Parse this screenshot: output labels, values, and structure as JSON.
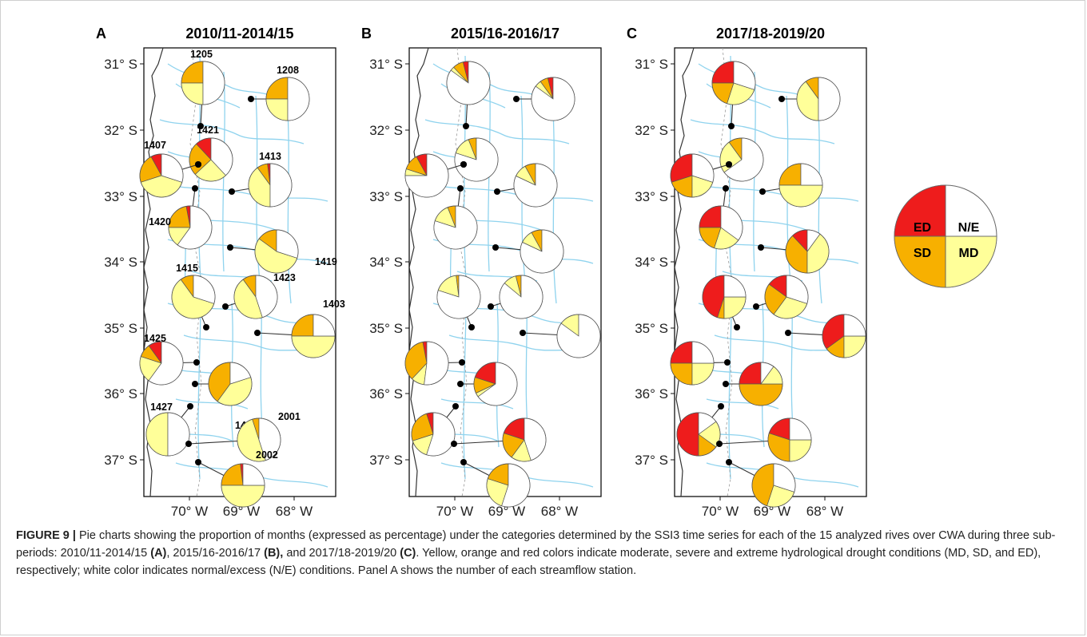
{
  "panels": [
    {
      "letter": "A",
      "title": "2010/11-2014/15"
    },
    {
      "letter": "B",
      "title": "2015/16-2016/17"
    },
    {
      "letter": "C",
      "title": "2017/18-2019/20"
    }
  ],
  "axes": {
    "y_ticks": [
      "31° S",
      "32° S",
      "33° S",
      "34° S",
      "35° S",
      "36° S",
      "37° S"
    ],
    "x_ticks": [
      "70° W",
      "69° W",
      "68° W"
    ]
  },
  "legend": {
    "ED": "ED",
    "NE": "N/E",
    "SD": "SD",
    "MD": "MD"
  },
  "colors": {
    "ED": "#ee1c1c",
    "SD": "#f7b000",
    "MD": "#ffff99",
    "NE": "#ffffff",
    "rivers": "#8fd3ee",
    "coast": "#333333"
  },
  "stations": [
    "1205",
    "1208",
    "1421",
    "1407",
    "1413",
    "1420",
    "1419",
    "1415",
    "1423",
    "1403",
    "1425",
    "1426",
    "1427",
    "2001",
    "2002"
  ],
  "chart_data": [
    {
      "type": "pie",
      "panel": "A",
      "title": "2010/11-2014/15",
      "categories": [
        "ED",
        "SD",
        "MD",
        "N/E"
      ],
      "stations": [
        {
          "id": "1205",
          "values": [
            0,
            25,
            25,
            50
          ]
        },
        {
          "id": "1208",
          "values": [
            0,
            25,
            25,
            50
          ]
        },
        {
          "id": "1421",
          "values": [
            12,
            25,
            25,
            38
          ]
        },
        {
          "id": "1407",
          "values": [
            8,
            22,
            40,
            30
          ]
        },
        {
          "id": "1413",
          "values": [
            2,
            8,
            40,
            50
          ]
        },
        {
          "id": "1420",
          "values": [
            3,
            22,
            15,
            60
          ]
        },
        {
          "id": "1419",
          "values": [
            0,
            15,
            55,
            30
          ]
        },
        {
          "id": "1415",
          "values": [
            0,
            10,
            60,
            30
          ]
        },
        {
          "id": "1423",
          "values": [
            0,
            10,
            45,
            45
          ]
        },
        {
          "id": "1403",
          "values": [
            0,
            25,
            50,
            25
          ]
        },
        {
          "id": "1425",
          "values": [
            10,
            10,
            20,
            60
          ]
        },
        {
          "id": "1426",
          "values": [
            0,
            40,
            40,
            20
          ]
        },
        {
          "id": "1427",
          "values": [
            0,
            0,
            50,
            50
          ]
        },
        {
          "id": "2001",
          "values": [
            0,
            5,
            50,
            45
          ]
        },
        {
          "id": "2002",
          "values": [
            2,
            23,
            50,
            25
          ]
        }
      ]
    },
    {
      "type": "pie",
      "panel": "B",
      "title": "2015/16-2016/17",
      "categories": [
        "ED",
        "SD",
        "MD",
        "N/E"
      ],
      "stations": [
        {
          "id": "1205",
          "values": [
            4,
            8,
            3,
            85
          ]
        },
        {
          "id": "1208",
          "values": [
            4,
            6,
            5,
            85
          ]
        },
        {
          "id": "1421",
          "values": [
            0,
            6,
            14,
            80
          ]
        },
        {
          "id": "1407",
          "values": [
            8,
            12,
            5,
            75
          ]
        },
        {
          "id": "1413",
          "values": [
            0,
            8,
            10,
            82
          ]
        },
        {
          "id": "1420",
          "values": [
            0,
            6,
            14,
            80
          ]
        },
        {
          "id": "1419",
          "values": [
            0,
            8,
            10,
            82
          ]
        },
        {
          "id": "1415",
          "values": [
            0,
            2,
            18,
            80
          ]
        },
        {
          "id": "1423",
          "values": [
            0,
            4,
            10,
            86
          ]
        },
        {
          "id": "1403",
          "values": [
            0,
            0,
            15,
            85
          ]
        },
        {
          "id": "1425",
          "values": [
            3,
            35,
            10,
            52
          ]
        },
        {
          "id": "1426",
          "values": [
            20,
            12,
            3,
            65
          ]
        },
        {
          "id": "1427",
          "values": [
            5,
            25,
            15,
            55
          ]
        },
        {
          "id": "2001",
          "values": [
            20,
            20,
            15,
            45
          ]
        },
        {
          "id": "2002",
          "values": [
            0,
            20,
            25,
            55
          ]
        }
      ]
    },
    {
      "type": "pie",
      "panel": "C",
      "title": "2017/18-2019/20",
      "categories": [
        "ED",
        "SD",
        "MD",
        "N/E"
      ],
      "stations": [
        {
          "id": "1205",
          "values": [
            25,
            20,
            25,
            30
          ]
        },
        {
          "id": "1208",
          "values": [
            0,
            10,
            40,
            50
          ]
        },
        {
          "id": "1421",
          "values": [
            0,
            10,
            25,
            65
          ]
        },
        {
          "id": "1407",
          "values": [
            30,
            20,
            20,
            30
          ]
        },
        {
          "id": "1413",
          "values": [
            0,
            25,
            50,
            25
          ]
        },
        {
          "id": "1420",
          "values": [
            25,
            20,
            20,
            35
          ]
        },
        {
          "id": "1419",
          "values": [
            12,
            38,
            40,
            10
          ]
        },
        {
          "id": "1415",
          "values": [
            45,
            5,
            25,
            25
          ]
        },
        {
          "id": "1423",
          "values": [
            15,
            25,
            30,
            30
          ]
        },
        {
          "id": "1403",
          "values": [
            35,
            15,
            25,
            25
          ]
        },
        {
          "id": "1425",
          "values": [
            25,
            25,
            25,
            25
          ]
        },
        {
          "id": "1426",
          "values": [
            25,
            50,
            15,
            10
          ]
        },
        {
          "id": "1427",
          "values": [
            50,
            15,
            20,
            15
          ]
        },
        {
          "id": "2001",
          "values": [
            20,
            30,
            25,
            25
          ]
        },
        {
          "id": "2002",
          "values": [
            0,
            45,
            25,
            30
          ]
        }
      ]
    }
  ],
  "caption": {
    "head": "FIGURE 9 |",
    "s1": " Pie charts showing the proportion of months (expressed as percentage) under the categories determined by the SSI3 time series for each of the 15 analyzed rives over CWA during three sub-periods: 2010/11-2014/15 ",
    "a": "(A)",
    "s2": ", 2015/16-2016/17 ",
    "b": "(B),",
    "s3": " and 2017/18-2019/20 ",
    "c": "(C)",
    "s4": ". Yellow, orange and red colors indicate moderate, severe and extreme hydrological drought conditions (MD, SD, and ED), respectively; white color indicates normal/excess (N/E) conditions. Panel A shows the number of each streamflow station."
  }
}
